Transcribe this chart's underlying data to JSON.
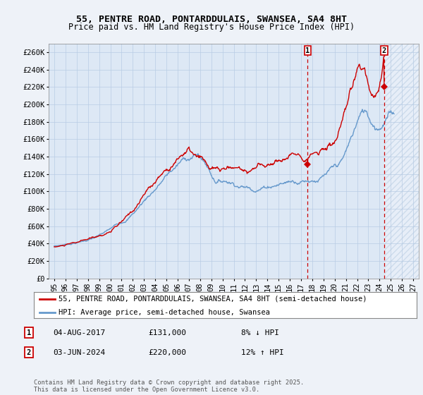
{
  "title_line1": "55, PENTRE ROAD, PONTARDDULAIS, SWANSEA, SA4 8HT",
  "title_line2": "Price paid vs. HM Land Registry's House Price Index (HPI)",
  "ylim": [
    0,
    270000
  ],
  "yticks": [
    0,
    20000,
    40000,
    60000,
    80000,
    100000,
    120000,
    140000,
    160000,
    180000,
    200000,
    220000,
    240000,
    260000
  ],
  "ytick_labels": [
    "£0",
    "£20K",
    "£40K",
    "£60K",
    "£80K",
    "£100K",
    "£120K",
    "£140K",
    "£160K",
    "£180K",
    "£200K",
    "£220K",
    "£240K",
    "£260K"
  ],
  "xlim_start": 1994.5,
  "xlim_end": 2027.5,
  "xtick_years": [
    1995,
    1996,
    1997,
    1998,
    1999,
    2000,
    2001,
    2002,
    2003,
    2004,
    2005,
    2006,
    2007,
    2008,
    2009,
    2010,
    2011,
    2012,
    2013,
    2014,
    2015,
    2016,
    2017,
    2018,
    2019,
    2020,
    2021,
    2022,
    2023,
    2024,
    2025,
    2026,
    2027
  ],
  "background_color": "#eef2f8",
  "plot_bg_color": "#dde8f5",
  "grid_color": "#b8cce4",
  "red_line_color": "#cc0000",
  "blue_line_color": "#6699cc",
  "marker1_year": 2017.583,
  "marker1_value": 131000,
  "marker2_year": 2024.417,
  "marker2_value": 220000,
  "vline_color": "#cc0000",
  "legend_label_red": "55, PENTRE ROAD, PONTARDDULAIS, SWANSEA, SA4 8HT (semi-detached house)",
  "legend_label_blue": "HPI: Average price, semi-detached house, Swansea",
  "annotation1_label": "1",
  "annotation1_date": "04-AUG-2017",
  "annotation1_price": "£131,000",
  "annotation1_hpi": "8% ↓ HPI",
  "annotation2_label": "2",
  "annotation2_date": "03-JUN-2024",
  "annotation2_price": "£220,000",
  "annotation2_hpi": "12% ↑ HPI",
  "footer": "Contains HM Land Registry data © Crown copyright and database right 2025.\nThis data is licensed under the Open Government Licence v3.0.",
  "title_fontsize": 9.5,
  "tick_fontsize": 7.5,
  "hatch_color": "#b8cce4"
}
